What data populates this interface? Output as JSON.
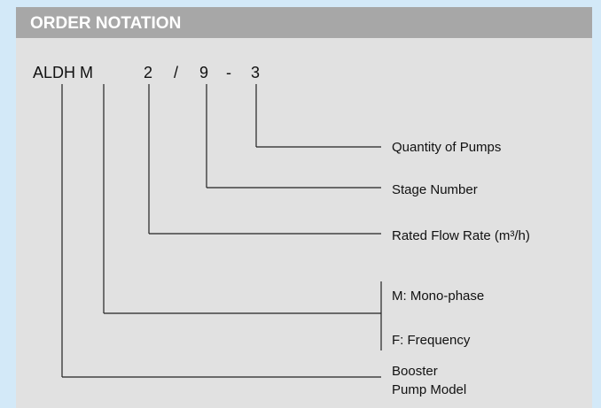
{
  "header": {
    "title": "ORDER NOTATION"
  },
  "code": [
    "ALDH M",
    "2",
    "/",
    "9",
    "-",
    "3"
  ],
  "labels": {
    "quantity": "Quantity of Pumps",
    "stage": "Stage Number",
    "flow": "Rated Flow Rate (m³/h)",
    "mono": "M: Mono-phase",
    "freq": "F: Frequency",
    "model": [
      "Booster",
      "Pump Model"
    ]
  }
}
